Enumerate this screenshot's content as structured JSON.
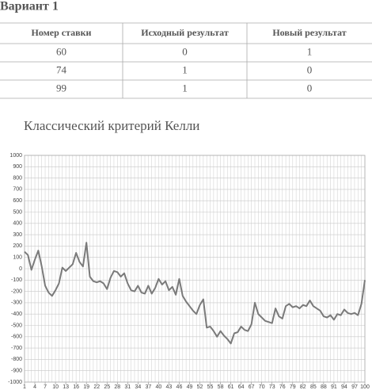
{
  "header": {
    "title": "Вариант 1"
  },
  "table": {
    "columns": [
      "Номер ставки",
      "Исходный результат",
      "Новый результат"
    ],
    "rows": [
      [
        "60",
        "0",
        "1"
      ],
      [
        "74",
        "1",
        "0"
      ],
      [
        "99",
        "1",
        "0"
      ]
    ]
  },
  "chart_data": {
    "type": "line",
    "title": "Классический критерий Келли",
    "x": [
      1,
      2,
      3,
      4,
      5,
      6,
      7,
      8,
      9,
      10,
      11,
      12,
      13,
      14,
      15,
      16,
      17,
      18,
      19,
      20,
      21,
      22,
      23,
      24,
      25,
      26,
      27,
      28,
      29,
      30,
      31,
      32,
      33,
      34,
      35,
      36,
      37,
      38,
      39,
      40,
      41,
      42,
      43,
      44,
      45,
      46,
      47,
      48,
      49,
      50,
      51,
      52,
      53,
      54,
      55,
      56,
      57,
      58,
      59,
      60,
      61,
      62,
      63,
      64,
      65,
      66,
      67,
      68,
      69,
      70,
      71,
      72,
      73,
      74,
      75,
      76,
      77,
      78,
      79,
      80,
      81,
      82,
      83,
      84,
      85,
      86,
      87,
      88,
      89,
      90,
      91,
      92,
      93,
      94,
      95,
      96,
      97,
      98,
      99,
      100
    ],
    "values": [
      150,
      120,
      -10,
      80,
      160,
      20,
      -150,
      -210,
      -240,
      -190,
      -130,
      10,
      -20,
      10,
      40,
      140,
      60,
      20,
      230,
      -70,
      -110,
      -120,
      -110,
      -130,
      -180,
      -80,
      -20,
      -30,
      -70,
      -40,
      -130,
      -190,
      -200,
      -150,
      -210,
      -220,
      -150,
      -220,
      -170,
      -90,
      -140,
      -110,
      -190,
      -160,
      -230,
      -90,
      -240,
      -290,
      -330,
      -370,
      -400,
      -320,
      -270,
      -520,
      -510,
      -550,
      -600,
      -550,
      -590,
      -620,
      -660,
      -570,
      -560,
      -510,
      -540,
      -550,
      -490,
      -300,
      -400,
      -430,
      -460,
      -470,
      -480,
      -350,
      -420,
      -440,
      -330,
      -310,
      -340,
      -330,
      -350,
      -320,
      -330,
      -280,
      -330,
      -350,
      -370,
      -420,
      -430,
      -410,
      -450,
      -400,
      -410,
      -360,
      -390,
      -400,
      -390,
      -410,
      -310,
      -100
    ],
    "color": "#7a7a7a",
    "xlim": [
      1,
      100
    ],
    "xticks": [
      1,
      4,
      7,
      10,
      13,
      16,
      19,
      22,
      25,
      28,
      31,
      34,
      37,
      40,
      43,
      46,
      49,
      52,
      55,
      58,
      61,
      64,
      67,
      70,
      73,
      76,
      79,
      82,
      85,
      88,
      91,
      94,
      97,
      100
    ],
    "ylim": [
      -1000,
      1000
    ],
    "yticks": [
      1000,
      900,
      800,
      700,
      600,
      500,
      400,
      300,
      200,
      100,
      0,
      -100,
      -200,
      -300,
      -400,
      -500,
      -600,
      -700,
      -800,
      -900,
      -1000
    ],
    "grid": true
  }
}
